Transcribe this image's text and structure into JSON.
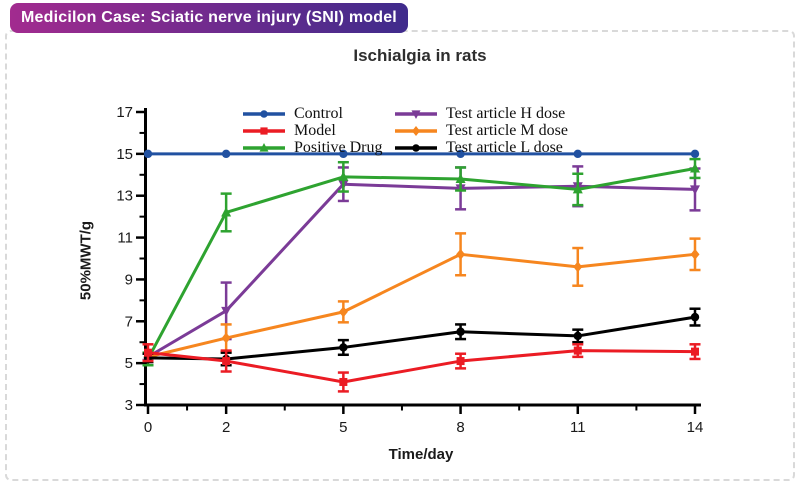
{
  "header": {
    "badge_label": "Medicilon Case: Sciatic nerve injury (SNI) model",
    "badge_gradient_left": "#A22B8F",
    "badge_gradient_right": "#3F2B8C"
  },
  "page": {
    "dashed_border_color": "#d9d9d9"
  },
  "chart_data": {
    "type": "line",
    "title": "Ischialgia in rats",
    "xlabel": "Time/day",
    "ylabel": "50%MWT/g",
    "x": [
      0,
      2,
      5,
      8,
      11,
      14
    ],
    "x_ticks": [
      "0",
      "2",
      "5",
      "8",
      "11",
      "14"
    ],
    "x_minor_ticks": [
      1,
      3.5,
      6.5,
      9.5,
      12.5
    ],
    "y_ticks": [
      3,
      5,
      7,
      9,
      11,
      13,
      15,
      17
    ],
    "y_minor_ticks": [
      4,
      6,
      8,
      10,
      12,
      14,
      16
    ],
    "xlim": [
      0,
      14
    ],
    "ylim": [
      3,
      17
    ],
    "grid": false,
    "legend_position": "top-inside-two-columns",
    "series": [
      {
        "name": "Control",
        "color": "#2151A1",
        "marker": "circle",
        "values": [
          15,
          15,
          15,
          15,
          15,
          15
        ],
        "errors": [
          0,
          0,
          0,
          0,
          0,
          0
        ]
      },
      {
        "name": "Model",
        "color": "#EB1C24",
        "marker": "square",
        "values": [
          5.5,
          5.1,
          4.1,
          5.1,
          5.6,
          5.55
        ],
        "errors": [
          0.4,
          0.5,
          0.45,
          0.35,
          0.3,
          0.35
        ]
      },
      {
        "name": "Positive Drug",
        "color": "#2EA330",
        "marker": "triangle-up",
        "values": [
          5.2,
          12.2,
          13.9,
          13.8,
          13.3,
          14.3
        ],
        "errors": [
          0.3,
          0.9,
          0.7,
          0.55,
          0.75,
          0.45
        ]
      },
      {
        "name": "Test article H dose",
        "color": "#7B3B97",
        "marker": "triangle-down",
        "values": [
          5.3,
          7.5,
          13.55,
          13.35,
          13.45,
          13.3
        ],
        "errors": [
          0.15,
          1.35,
          0.8,
          1.0,
          0.95,
          1.0
        ]
      },
      {
        "name": "Test article M dose",
        "color": "#F6861F",
        "marker": "diamond",
        "values": [
          5.3,
          6.2,
          7.45,
          10.2,
          9.6,
          10.2
        ],
        "errors": [
          0.2,
          0.65,
          0.5,
          1.0,
          0.9,
          0.75
        ]
      },
      {
        "name": "Test article L dose",
        "color": "#000000",
        "marker": "circle",
        "values": [
          5.25,
          5.2,
          5.75,
          6.5,
          6.3,
          7.2
        ],
        "errors": [
          0.2,
          0.3,
          0.35,
          0.35,
          0.3,
          0.4
        ]
      }
    ]
  }
}
